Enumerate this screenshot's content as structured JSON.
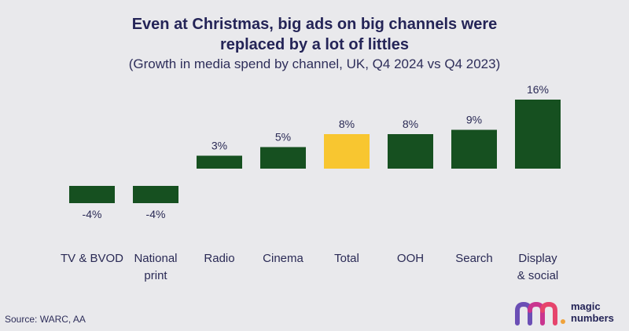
{
  "title_line1": "Even at Christmas, big ads on big channels were",
  "title_line2": "replaced by a lot of littles",
  "subtitle": "(Growth in media spend by channel, UK, Q4 2024 vs Q4 2023)",
  "source": "Source: WARC, AA",
  "logo": {
    "line1": "magic",
    "line2": "numbers"
  },
  "colors": {
    "bar": "#165020",
    "highlight": "#f8c630",
    "text": "#2a2a55"
  },
  "chart_data": {
    "type": "bar",
    "categories": [
      [
        "TV & BVOD"
      ],
      [
        "National",
        "print"
      ],
      [
        "Radio"
      ],
      [
        "Cinema"
      ],
      [
        "Total"
      ],
      [
        "OOH"
      ],
      [
        "Search"
      ],
      [
        "Display",
        "& social"
      ]
    ],
    "values": [
      -4,
      -4,
      3,
      5,
      8,
      8,
      9,
      16
    ],
    "labels": [
      "-4%",
      "-4%",
      "3%",
      "5%",
      "8%",
      "8%",
      "9%",
      "16%"
    ],
    "highlight_category": "Total",
    "title": "Even at Christmas, big ads on big channels were replaced by a lot of littles",
    "subtitle": "(Growth in media spend by channel, UK, Q4 2024 vs Q4 2023)",
    "xlabel": "",
    "ylabel": "",
    "unit": "%",
    "grid": false,
    "legend": "none"
  }
}
